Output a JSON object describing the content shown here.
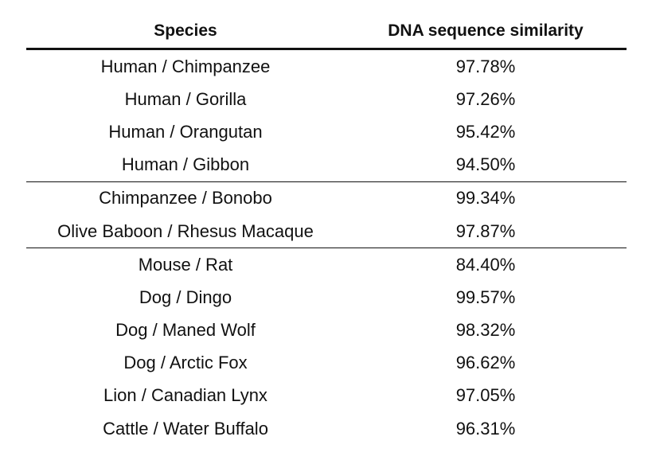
{
  "table": {
    "headers": {
      "species": "Species",
      "similarity": "DNA sequence similarity"
    },
    "rows": [
      {
        "species": "Human / Chimpanzee",
        "similarity": "97.78%"
      },
      {
        "species": "Human / Gorilla",
        "similarity": "97.26%"
      },
      {
        "species": "Human / Orangutan",
        "similarity": "95.42%"
      },
      {
        "species": "Human / Gibbon",
        "similarity": "94.50%"
      },
      {
        "species": "Chimpanzee / Bonobo",
        "similarity": "99.34%"
      },
      {
        "species": "Olive Baboon / Rhesus Macaque",
        "similarity": "97.87%"
      },
      {
        "species": "Mouse / Rat",
        "similarity": "84.40%"
      },
      {
        "species": "Dog / Dingo",
        "similarity": "99.57%"
      },
      {
        "species": "Dog / Maned Wolf",
        "similarity": "98.32%"
      },
      {
        "species": "Dog / Arctic Fox",
        "similarity": "96.62%"
      },
      {
        "species": "Lion / Canadian Lynx",
        "similarity": "97.05%"
      },
      {
        "species": "Cattle / Water Buffalo",
        "similarity": "96.31%"
      }
    ]
  }
}
